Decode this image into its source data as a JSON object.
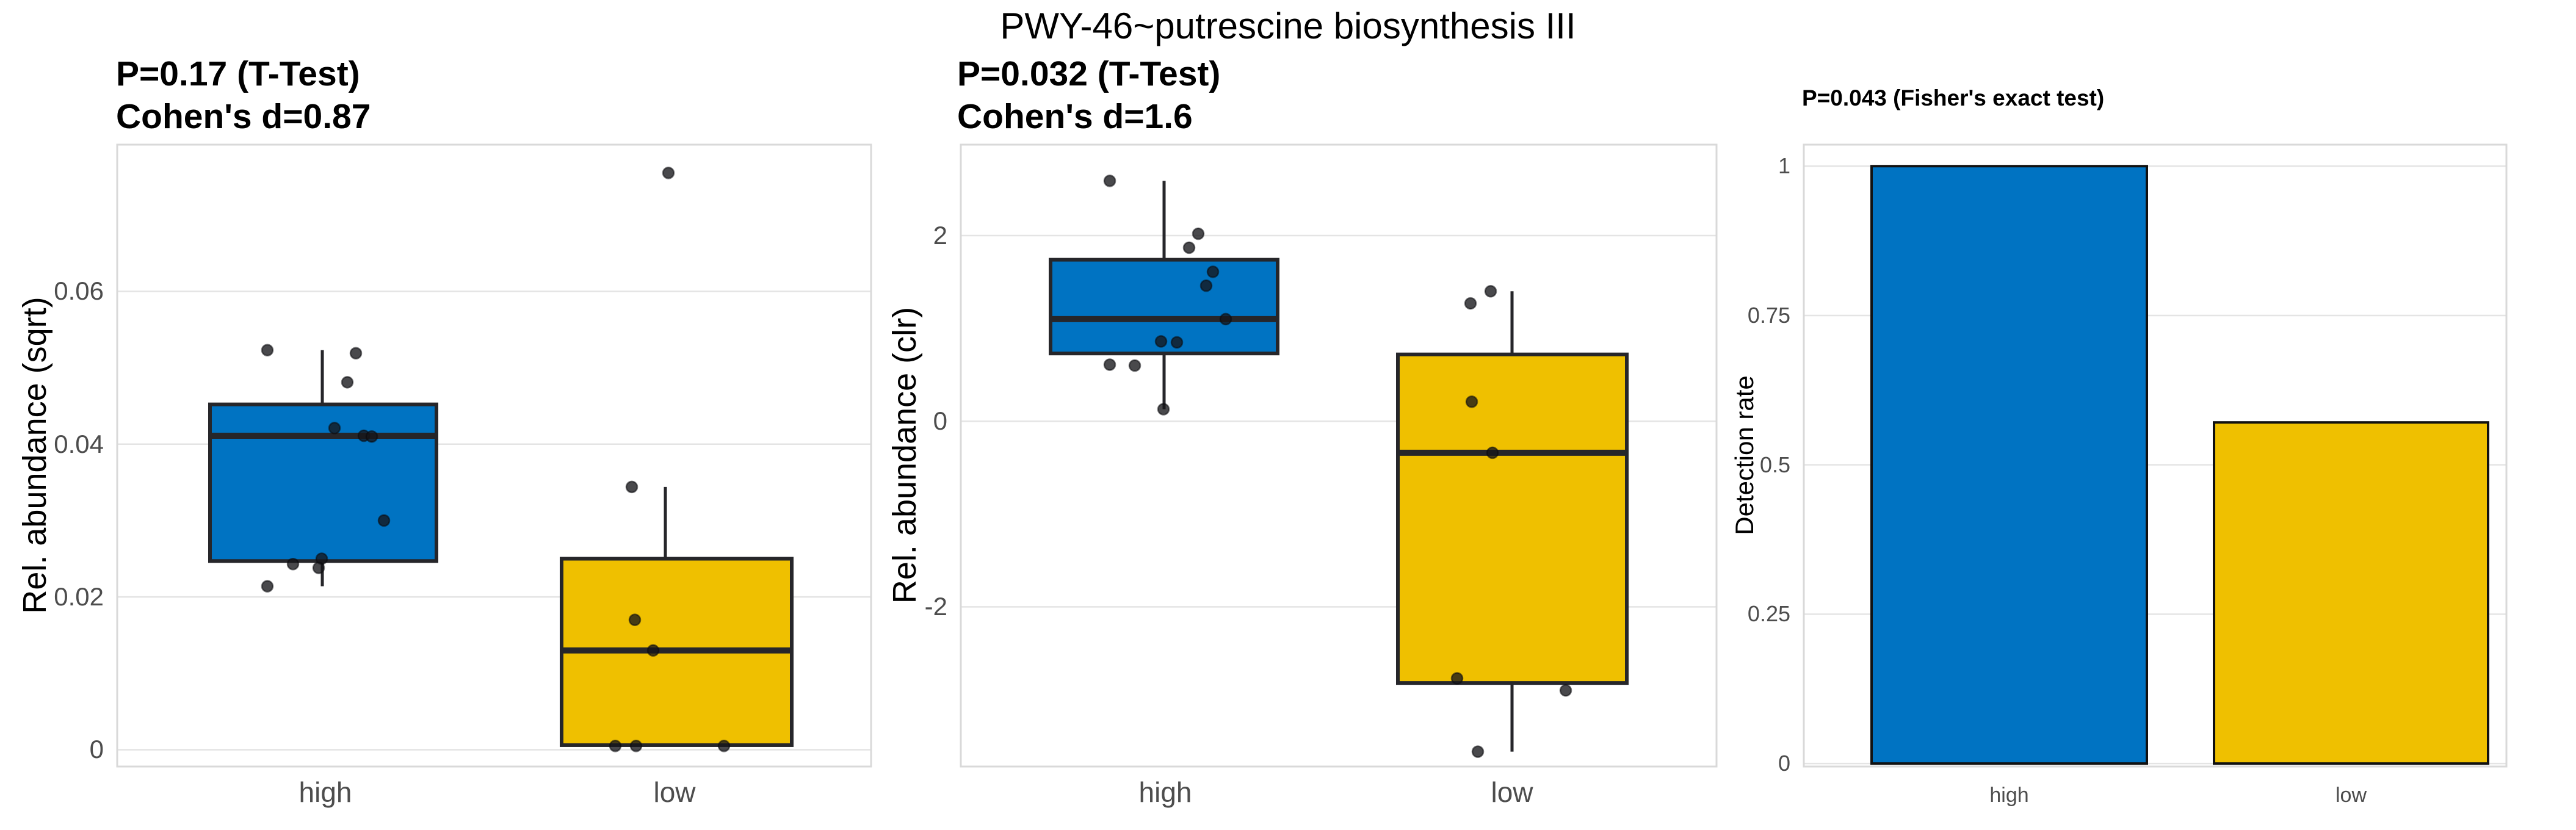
{
  "figure": {
    "title": "PWY-46~putrescine biosynthesis III",
    "colors": {
      "high_fill": "#0073C2",
      "low_fill": "#EFC000",
      "line": "#26262A",
      "point_fill": "rgba(22,22,26,0.78)",
      "point_stroke": "rgba(10,10,12,0.55)",
      "bar_outline": "#111111",
      "tick_text": "#4D4D4D",
      "axis_text": "#000000",
      "grid_major": "#E4E4E4",
      "panel_border": "#D9D9D9",
      "background": "#FFFFFF"
    }
  },
  "chart_data": [
    {
      "type": "boxplot",
      "title_lines": [
        "P=0.17 (T-Test)",
        "Cohen's d=0.87"
      ],
      "ylabel": "Rel. abundance (sqrt)",
      "categories": [
        "high",
        "low"
      ],
      "ylim": [
        -0.0022,
        0.0792
      ],
      "yticks": [
        0,
        0.02,
        0.04,
        0.06
      ],
      "ytick_labels": [
        "0",
        "0.02",
        "0.04",
        "0.06"
      ],
      "grid": "major-horizontal",
      "legend": "none",
      "groups": [
        {
          "label": "high",
          "color": "high_fill",
          "q1": 0.0247,
          "median": 0.0411,
          "q3": 0.0452,
          "whisker_low": 0.0214,
          "whisker_high": 0.0523,
          "points": [
            {
              "dx": -95,
              "v": 0.0523
            },
            {
              "dx": 50,
              "v": 0.0519
            },
            {
              "dx": 36,
              "v": 0.0481
            },
            {
              "dx": 15,
              "v": 0.0421
            },
            {
              "dx": 63,
              "v": 0.0411
            },
            {
              "dx": 76,
              "v": 0.041
            },
            {
              "dx": 96,
              "v": 0.03
            },
            {
              "dx": -6,
              "v": 0.025
            },
            {
              "dx": -53,
              "v": 0.0243
            },
            {
              "dx": -11,
              "v": 0.0238
            },
            {
              "dx": -95,
              "v": 0.0214
            }
          ]
        },
        {
          "label": "low",
          "color": "low_fill",
          "q1": 0.0006,
          "median": 0.013,
          "q3": 0.025,
          "whisker_low": 0.0006,
          "whisker_high": 0.0344,
          "points": [
            {
              "dx": -10,
              "v": 0.0755
            },
            {
              "dx": -70,
              "v": 0.0344
            },
            {
              "dx": -65,
              "v": 0.017
            },
            {
              "dx": -35,
              "v": 0.013
            },
            {
              "dx": -97,
              "v": 0.0005
            },
            {
              "dx": -63,
              "v": 0.0005
            },
            {
              "dx": 81,
              "v": 0.0005
            }
          ]
        }
      ]
    },
    {
      "type": "boxplot",
      "title_lines": [
        "P=0.032 (T-Test)",
        "Cohen's d=1.6"
      ],
      "ylabel": "Rel. abundance (clr)",
      "categories": [
        "high",
        "low"
      ],
      "ylim": [
        -3.72,
        2.98
      ],
      "yticks": [
        -2,
        0,
        2
      ],
      "ytick_labels": [
        "-2",
        "0",
        "2"
      ],
      "grid": "major-horizontal",
      "legend": "none",
      "groups": [
        {
          "label": "high",
          "color": "high_fill",
          "q1": 0.73,
          "median": 1.1,
          "q3": 1.74,
          "whisker_low": 0.13,
          "whisker_high": 2.59,
          "points": [
            {
              "dx": -91,
              "v": 2.59
            },
            {
              "dx": 54,
              "v": 2.02
            },
            {
              "dx": 39,
              "v": 1.87
            },
            {
              "dx": 78,
              "v": 1.61
            },
            {
              "dx": 67,
              "v": 1.46
            },
            {
              "dx": 99,
              "v": 1.1
            },
            {
              "dx": -7,
              "v": 0.86
            },
            {
              "dx": 19,
              "v": 0.85
            },
            {
              "dx": -91,
              "v": 0.61
            },
            {
              "dx": -50,
              "v": 0.6
            },
            {
              "dx": -3,
              "v": 0.13
            }
          ]
        },
        {
          "label": "low",
          "color": "low_fill",
          "q1": -2.82,
          "median": -0.34,
          "q3": 0.72,
          "whisker_low": -3.56,
          "whisker_high": 1.4,
          "points": [
            {
              "dx": -35,
              "v": 1.4
            },
            {
              "dx": -68,
              "v": 1.27
            },
            {
              "dx": -66,
              "v": 0.21
            },
            {
              "dx": -32,
              "v": -0.34
            },
            {
              "dx": -90,
              "v": -2.77
            },
            {
              "dx": 88,
              "v": -2.9
            },
            {
              "dx": -56,
              "v": -3.56
            }
          ]
        }
      ]
    },
    {
      "type": "bar",
      "title_lines": [
        "P=0.043 (Fisher's exact test)"
      ],
      "ylabel": "Detection rate",
      "categories": [
        "high",
        "low"
      ],
      "values": [
        1.0,
        0.571
      ],
      "ylim": [
        -0.005,
        1.036
      ],
      "yticks": [
        0,
        0.25,
        0.5,
        0.75,
        1
      ],
      "ytick_labels": [
        "0",
        "0.25",
        "0.5",
        "0.75",
        "1"
      ],
      "grid": "major-horizontal",
      "legend": "none"
    }
  ]
}
